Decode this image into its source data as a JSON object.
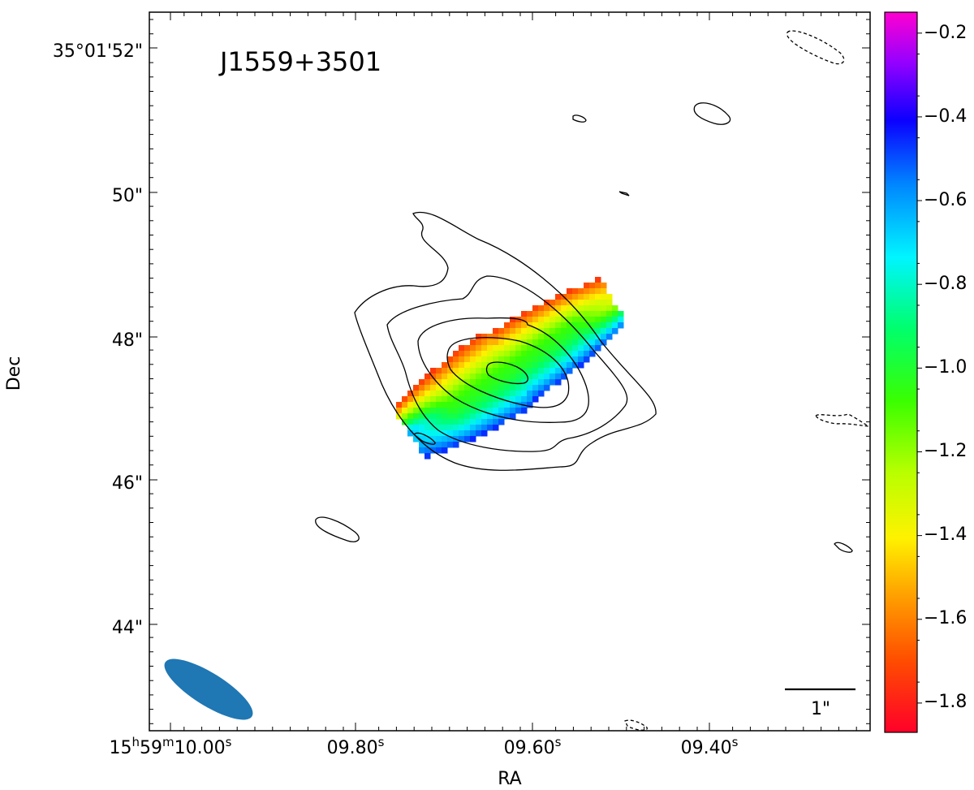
{
  "chart_data": {
    "type": "heatmap",
    "title": "J1559+3501",
    "xlabel": "RA",
    "ylabel": "Dec",
    "x_tick_labels": [
      "15h59m10.00s",
      "09.80s",
      "09.60s",
      "09.40s"
    ],
    "x_ticks": [
      {
        "main": "15",
        "sup": "h",
        "main2": "59",
        "sup2": "m",
        "main3": "10.00",
        "sup3": "s"
      },
      {
        "main": "09.80",
        "sup": "s"
      },
      {
        "main": "09.60",
        "sup": "s"
      },
      {
        "main": "09.40",
        "sup": "s"
      }
    ],
    "y_tick_labels": [
      "35°01'52\"",
      "50\"",
      "48\"",
      "46\"",
      "44\""
    ],
    "y_tick_values_arcsec": [
      52,
      50,
      48,
      46,
      44
    ],
    "dec_range_arcsec": [
      42.9,
      52.55
    ],
    "ra_range_sec": [
      9.3,
      10.03
    ],
    "colorbar": {
      "label": "",
      "ticks": [
        -0.2,
        -0.4,
        -0.6,
        -0.8,
        -1.0,
        -1.2,
        -1.4,
        -1.6,
        -1.8
      ],
      "tick_labels": [
        "−0.2",
        "−0.4",
        "−0.6",
        "−0.8",
        "−1.0",
        "−1.2",
        "−1.4",
        "−1.6",
        "−1.8"
      ],
      "vmin": -1.87,
      "vmax": -0.15,
      "colormap": "gist_rainbow"
    },
    "scale_bar_label": "1\"",
    "beam": {
      "fill": "#1f77b4"
    },
    "grid": false,
    "legend": "none",
    "source_center": {
      "ra_sec": 9.625,
      "dec_arcsec": 47.5
    },
    "source_position_angle_deg": -55,
    "source_major_arcsec": 3.4,
    "source_minor_arcsec": 1.25,
    "index_map": {
      "ridge_value": -1.05,
      "north_edge_value": -1.75,
      "south_edge_value": -0.45,
      "east_end_value": -0.62,
      "west_end_value": -1.35
    },
    "contours": {
      "line_color": "#000000",
      "levels_relative": [
        1,
        4,
        16,
        64,
        256
      ]
    }
  }
}
